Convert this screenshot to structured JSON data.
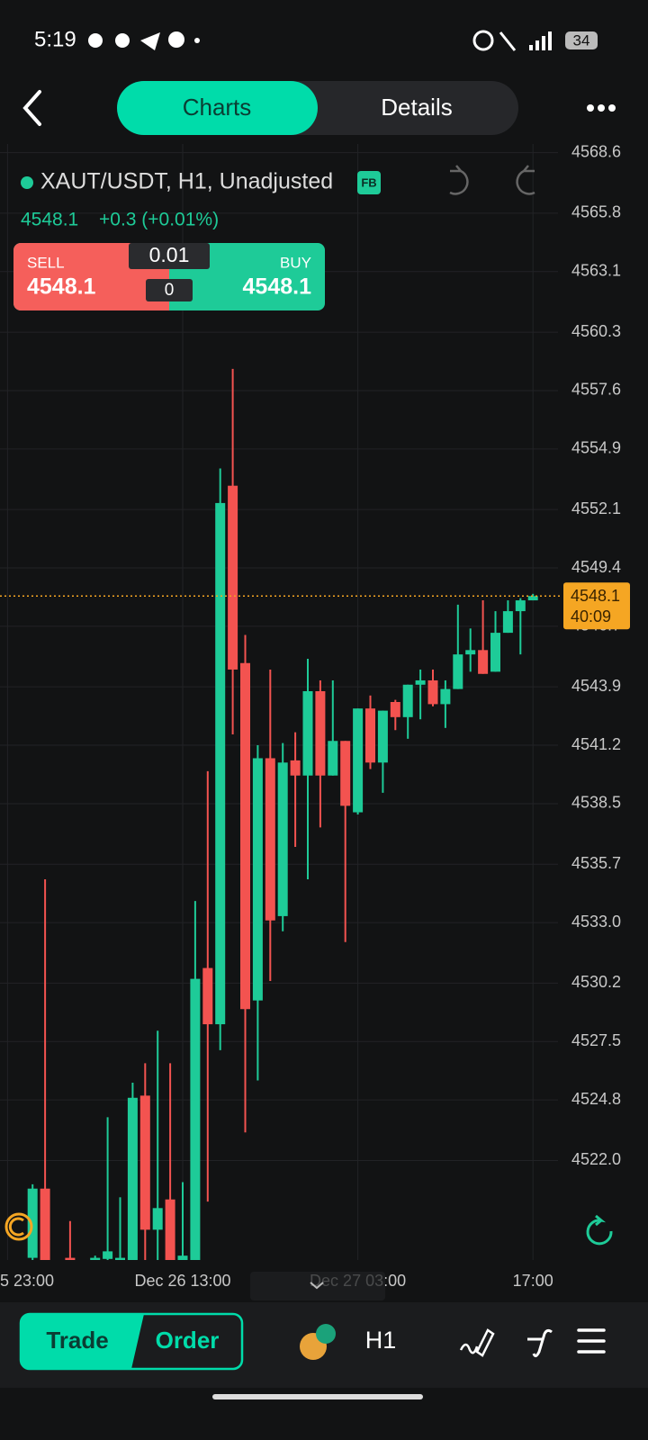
{
  "status_bar": {
    "time": "5:19",
    "battery": "34"
  },
  "tabs": [
    "Charts",
    "Details"
  ],
  "quote": {
    "last": "4548.1",
    "change": "+0.3 (+0.01%)",
    "badge": "FB"
  },
  "order_box": {
    "sell_label": "SELL",
    "sell_price": "4548.1",
    "lot": "0.01",
    "count": "0",
    "buy_label": "BUY",
    "buy_price": "4548.1"
  },
  "bottom_bar": {
    "trade": "Trade",
    "order": "Order",
    "interval": "H1"
  },
  "chart_data": {
    "type": "candlestick",
    "title": "XAUT/USDT, H1, Unadjusted",
    "categories": [
      "5 23:00",
      null,
      null,
      null,
      null,
      null,
      null,
      null,
      null,
      null,
      null,
      null,
      null,
      null,
      "Dec 26 13:00",
      null,
      null,
      null,
      null,
      null,
      null,
      null,
      null,
      null,
      null,
      null,
      null,
      null,
      "Dec 27 03:00",
      null,
      null,
      null,
      null,
      null,
      null,
      null,
      null,
      null,
      null,
      null,
      null,
      null,
      "17:00"
    ],
    "open": [
      null,
      null,
      4517.5,
      4520.7,
      null,
      4517.5,
      null,
      4517.3,
      4517.45,
      4517.2,
      4517.3,
      4525.0,
      4518.8,
      4520.2,
      4517.3,
      4517.3,
      4530.9,
      4528.3,
      4553.2,
      4545.0,
      4529.4,
      4540.6,
      4533.3,
      4540.5,
      4539.8,
      4543.7,
      4539.8,
      4541.4,
      4538.1,
      4542.9,
      4540.4,
      4543.2,
      4542.5,
      4544.0,
      4544.2,
      4543.1,
      4543.8,
      4545.4,
      4545.6,
      4544.6,
      4546.4,
      4547.4,
      4547.9
    ],
    "high": [
      null,
      null,
      4520.9,
      4535.0,
      null,
      4519.2,
      null,
      4517.6,
      4524.0,
      4520.3,
      4525.6,
      4526.5,
      4528.0,
      4526.5,
      4521.0,
      4534.0,
      4540.0,
      4554.0,
      4558.6,
      4546.3,
      4541.2,
      4544.7,
      4541.3,
      4541.8,
      4545.2,
      4544.2,
      4544.2,
      4541.4,
      4542.9,
      4543.5,
      4542.8,
      4543.3,
      4544.0,
      4544.7,
      4544.7,
      4544.2,
      4547.7,
      4546.6,
      4547.9,
      4547.4,
      4547.9,
      4548.0,
      4548.2
    ],
    "low": [
      null,
      null,
      4517.0,
      4517.0,
      null,
      4517.0,
      null,
      4517.0,
      4517.0,
      4517.0,
      4517.0,
      4517.2,
      4517.2,
      4517.0,
      4517.0,
      4517.0,
      4520.1,
      4527.1,
      4541.7,
      4523.3,
      4525.7,
      4530.3,
      4532.6,
      4536.5,
      4535.0,
      4537.4,
      4539.8,
      4532.1,
      4538.0,
      4540.1,
      4539.0,
      4541.9,
      4541.5,
      4542.4,
      4543.0,
      4542.0,
      4543.8,
      4544.6,
      4544.5,
      4544.6,
      4546.4,
      4545.4,
      4547.9
    ],
    "close": [
      null,
      null,
      4520.7,
      4517.4,
      null,
      4517.2,
      null,
      4517.5,
      4517.8,
      4517.5,
      4524.9,
      4518.8,
      4519.8,
      4517.3,
      4517.6,
      4530.4,
      4528.3,
      4552.4,
      4544.7,
      4529.0,
      4540.6,
      4533.1,
      4540.4,
      4539.8,
      4543.7,
      4539.8,
      4541.4,
      4538.4,
      4542.9,
      4540.4,
      4542.8,
      4542.5,
      4544.0,
      4544.2,
      4543.1,
      4543.8,
      4545.4,
      4545.6,
      4544.5,
      4546.4,
      4547.4,
      4547.9,
      4548.1
    ],
    "up_color": "#1ecb98",
    "down_color": "#f35350",
    "current_price": 4548.1,
    "countdown": "40:09",
    "price_line_color": "#f5a623",
    "ylim": [
      4517.4,
      4569.0
    ],
    "yticks": [
      {
        "value": 4568.6,
        "label": "4568.6"
      },
      {
        "value": 4565.8,
        "label": "4565.8"
      },
      {
        "value": 4563.1,
        "label": "4563.1"
      },
      {
        "value": 4560.3,
        "label": "4560.3"
      },
      {
        "value": 4557.6,
        "label": "4557.6"
      },
      {
        "value": 4554.9,
        "label": "4554.9"
      },
      {
        "value": 4552.1,
        "label": "4552.1"
      },
      {
        "value": 4549.4,
        "label": "4549.4"
      },
      {
        "value": 4546.7,
        "label": "4546.7"
      },
      {
        "value": 4543.9,
        "label": "4543.9"
      },
      {
        "value": 4541.2,
        "label": "4541.2"
      },
      {
        "value": 4538.5,
        "label": "4538.5"
      },
      {
        "value": 4535.7,
        "label": "4535.7"
      },
      {
        "value": 4533.0,
        "label": "4533.0"
      },
      {
        "value": 4530.2,
        "label": "4530.2"
      },
      {
        "value": 4527.5,
        "label": "4527.5"
      },
      {
        "value": 4524.8,
        "label": "4524.8"
      },
      {
        "value": 4522.0,
        "label": "4522.0"
      }
    ],
    "grid": true
  }
}
